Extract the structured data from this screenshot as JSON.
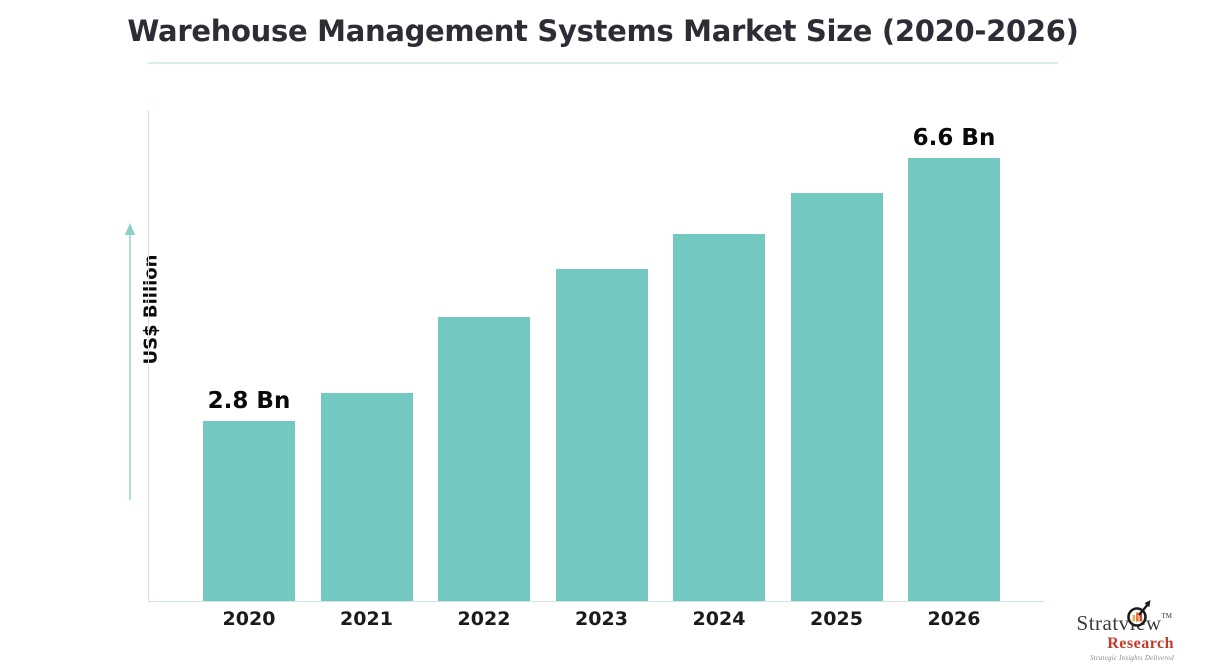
{
  "title": "Warehouse Management Systems Market Size (2020-2026)",
  "chart_data": {
    "type": "bar",
    "title": "Warehouse Management Systems Market Size (2020-2026)",
    "categories": [
      "2020",
      "2021",
      "2022",
      "2023",
      "2024",
      "2025",
      "2026"
    ],
    "values": [
      2.8,
      3.2,
      4.3,
      5.0,
      5.5,
      6.1,
      6.6
    ],
    "data_labels": [
      "2.8 Bn",
      "",
      "",
      "",
      "",
      "",
      "6.6 Bn"
    ],
    "xlabel": "",
    "ylabel": "US$ Billion",
    "ylim": [
      0,
      7.3
    ],
    "grid": false,
    "legend": false,
    "bar_color": "#73c9c2",
    "axis_color": "#cfe8e4",
    "arrow_color": "#9fd6d0"
  },
  "logo": {
    "brand": "Stratview",
    "trademark": "TM",
    "brand2": "Research",
    "tagline": "Strategic Insights Delivered"
  },
  "colors": {
    "bar": "#73c9c2",
    "axis": "#cfe8e4",
    "arrow": "#9fd6d0",
    "title_text": "#2d2d35",
    "underline": "#d8eeea",
    "research_red": "#c43c2a"
  }
}
